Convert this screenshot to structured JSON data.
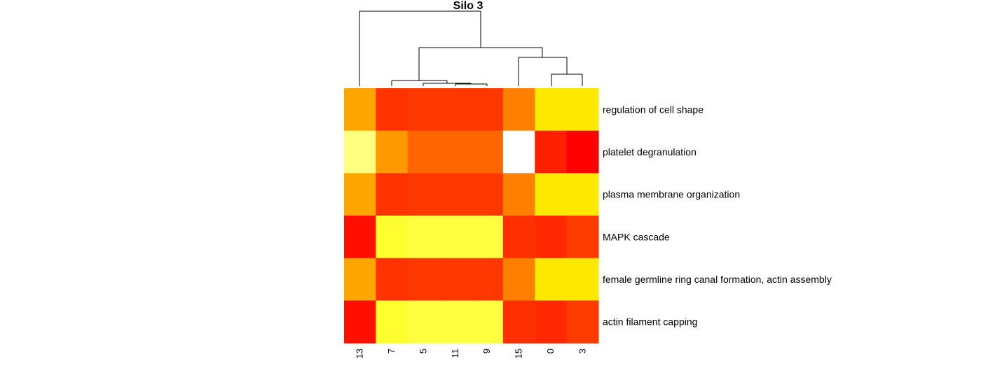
{
  "chart_data": {
    "type": "heatmap",
    "title": "Silo 3",
    "columns": [
      "13",
      "7",
      "5",
      "11",
      "9",
      "15",
      "0",
      "3"
    ],
    "rows": [
      "regulation of cell shape",
      "platelet degranulation",
      "plasma membrane organization",
      "MAPK cascade",
      "female germline ring canal formation, actin assembly",
      "actin filament capping"
    ],
    "color_scale": "heat (red = low, yellow/white = high)",
    "colors": [
      [
        "#ffa500",
        "#ff3300",
        "#ff3800",
        "#ff3800",
        "#ff3800",
        "#ff8000",
        "#ffe800",
        "#ffe800"
      ],
      [
        "#ffff80",
        "#ff9900",
        "#ff6600",
        "#ff6600",
        "#ff6600",
        "#ffffff",
        "#ff2000",
        "#ff0000"
      ],
      [
        "#ffa500",
        "#ff3300",
        "#ff3800",
        "#ff3800",
        "#ff3800",
        "#ff8000",
        "#ffe800",
        "#ffe800"
      ],
      [
        "#ff1000",
        "#ffff30",
        "#ffff40",
        "#ffff40",
        "#ffff40",
        "#ff3000",
        "#ff2800",
        "#ff3c00"
      ],
      [
        "#ffa500",
        "#ff3300",
        "#ff3800",
        "#ff3800",
        "#ff3800",
        "#ff8000",
        "#ffe800",
        "#ffe800"
      ],
      [
        "#ff1000",
        "#ffff30",
        "#ffff40",
        "#ffff40",
        "#ffff40",
        "#ff3000",
        "#ff2800",
        "#ff3c00"
      ]
    ],
    "column_dendrogram": true
  }
}
